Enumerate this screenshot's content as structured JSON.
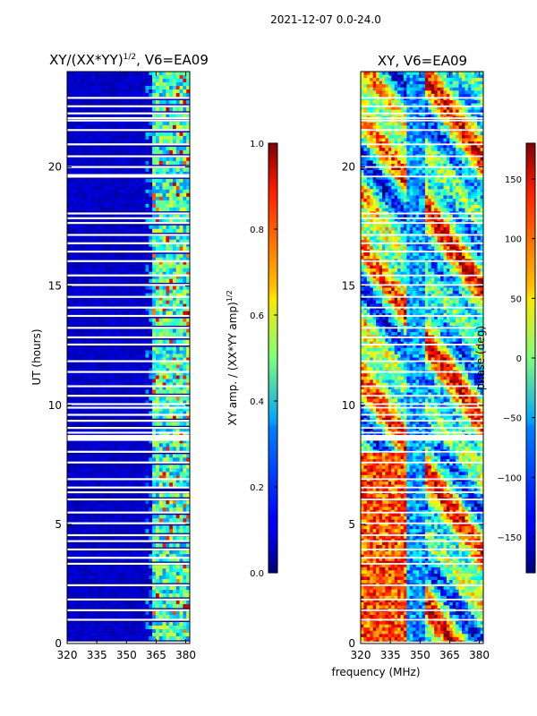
{
  "suptitle": "2021-12-07 0.0-24.0",
  "xlabel": "frequency (MHz)",
  "chart_data": [
    {
      "type": "heatmap",
      "title": "XY/(XX*YY)",
      "title_sup": "1/2",
      "title_tail": ", V6=EA09",
      "ylabel": "UT (hours)",
      "x_range": [
        320,
        382
      ],
      "xticks": [
        320,
        335,
        350,
        365,
        380
      ],
      "y_range": [
        0,
        24
      ],
      "yticks": [
        0,
        5,
        10,
        15,
        20
      ],
      "colormap": "jet",
      "colorbar": {
        "label": "XY amp. / (XX*YY amp)",
        "label_sup": "1/2",
        "range": [
          0.0,
          1.0
        ],
        "ticks": [
          "0.0",
          "0.2",
          "0.4",
          "0.6",
          "0.8",
          "1.0"
        ]
      }
    },
    {
      "type": "heatmap",
      "title": "XY, V6=EA09",
      "x_range": [
        320,
        382
      ],
      "xticks": [
        320,
        335,
        350,
        365,
        380
      ],
      "y_range": [
        0,
        24
      ],
      "yticks": [
        0,
        5,
        10,
        15,
        20
      ],
      "colormap": "jet",
      "colorbar": {
        "label": "phase (deg)",
        "range": [
          -180,
          180
        ],
        "ticks": [
          "150",
          "100",
          "50",
          "0",
          "−50",
          "−100",
          "−150"
        ]
      }
    }
  ]
}
